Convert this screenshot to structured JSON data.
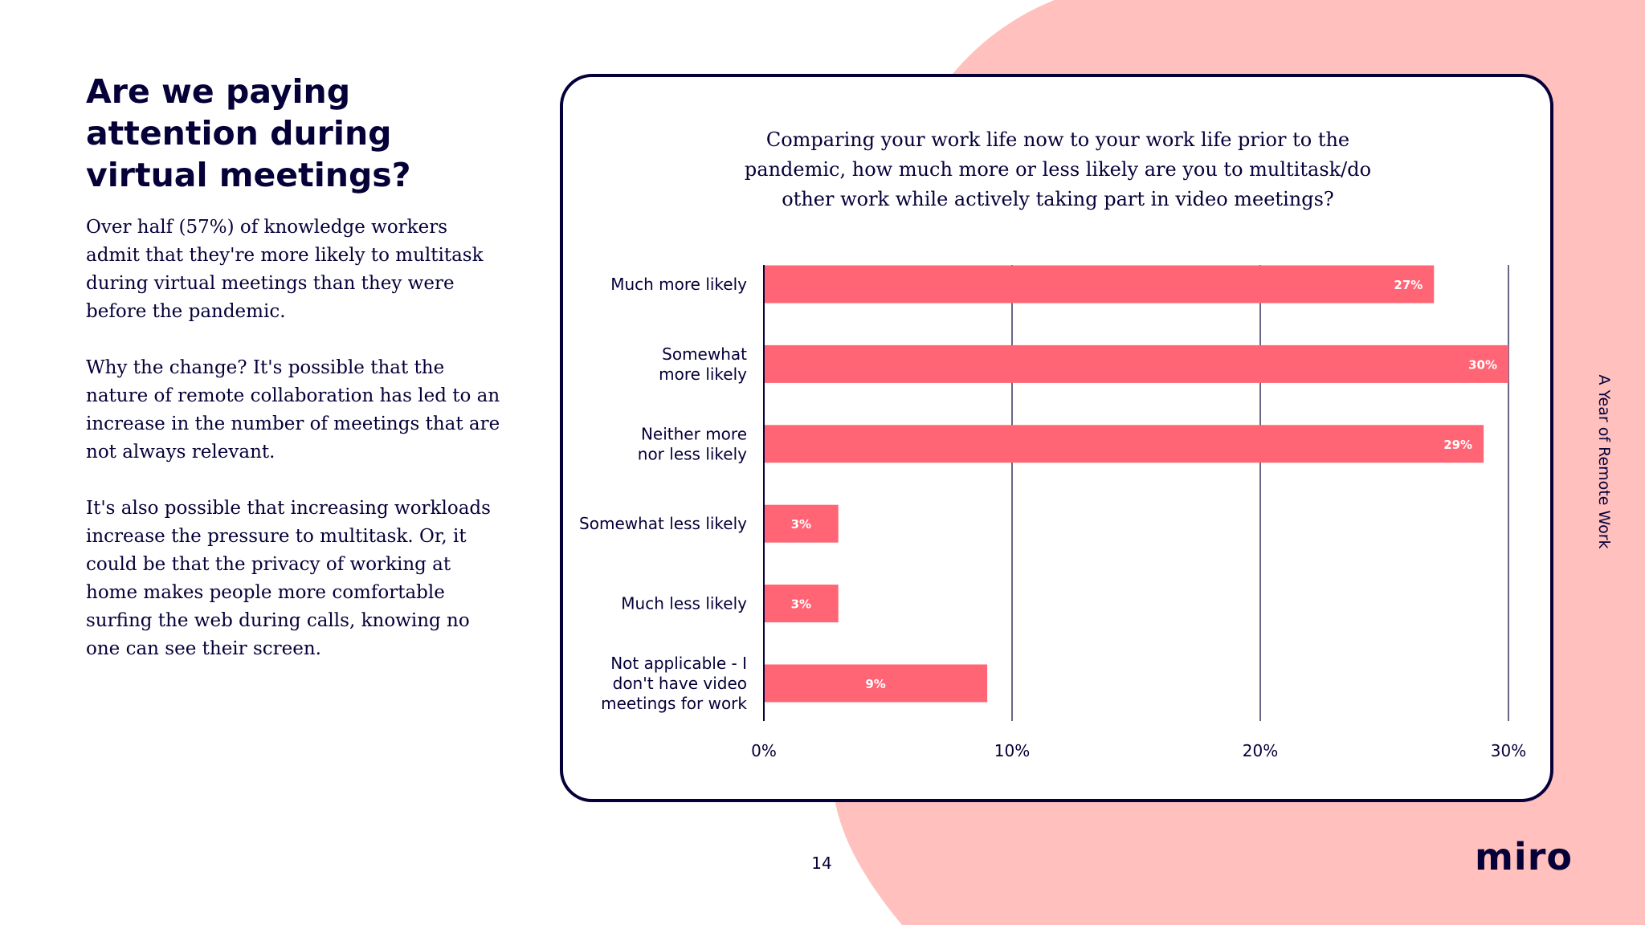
{
  "heading": "Are we paying attention during virtual meetings?",
  "body": [
    "Over half (57%) of knowledge workers admit that they're more likely to multitask during virtual meetings than they were before the pandemic.",
    "Why the change? It's possible that the nature of remote collaboration has led to an increase in the number of meetings that are not always relevant.",
    "It's also possible that increasing workloads increase the pressure to multitask. Or, it could be that the privacy of working at home makes people more comfortable surfing the web during calls, knowing no one can see their screen."
  ],
  "side_label": "A Year of Remote Work",
  "page_number": "14",
  "logo_text": "miro",
  "colors": {
    "accent": "#FF6575",
    "background_blob": "#FFC0BE",
    "ink": "#050038",
    "bar_label": "#FFFFFF"
  },
  "chart_data": {
    "type": "bar",
    "orientation": "horizontal",
    "title": "Comparing your work life now to your work life prior to the pandemic, how much more or less likely are you to multitask/do other work while actively taking part in video meetings?",
    "categories": [
      [
        "Much more likely"
      ],
      [
        "Somewhat",
        "more likely"
      ],
      [
        "Neither more",
        "nor less likely"
      ],
      [
        "Somewhat less likely"
      ],
      [
        "Much less likely"
      ],
      [
        "Not applicable - I",
        "don't have video",
        "meetings for work"
      ]
    ],
    "values": [
      27,
      30,
      29,
      3,
      3,
      9
    ],
    "value_labels": [
      "27%",
      "30%",
      "29%",
      "3%",
      "3%",
      "9%"
    ],
    "xlim": [
      0,
      30
    ],
    "xticks": [
      0,
      10,
      20,
      30
    ],
    "xtick_labels": [
      "0%",
      "10%",
      "20%",
      "30%"
    ],
    "grid": true,
    "legend": false
  }
}
